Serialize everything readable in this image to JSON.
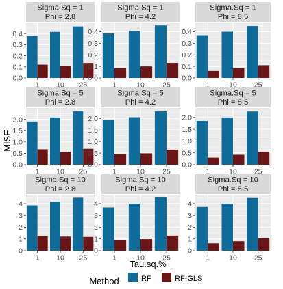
{
  "chart_data": {
    "type": "bar",
    "xlabel": "Tau.sq.%",
    "ylabel": "MISE",
    "categories": [
      "1",
      "10",
      "25"
    ],
    "legend": {
      "title": "Method",
      "position": "bottom",
      "entries": [
        {
          "name": "RF",
          "color": "#0f6b99"
        },
        {
          "name": "RF-GLS",
          "color": "#6b1616"
        }
      ]
    },
    "grid": true,
    "facets": [
      {
        "strip": [
          "Sigma.Sq = 1",
          "Phi = 2.8"
        ],
        "ylim": [
          0,
          0.5
        ],
        "yticks": [
          "0.0",
          "0.1",
          "0.2",
          "0.3",
          "0.4"
        ],
        "yvals": [
          0,
          0.1,
          0.2,
          0.3,
          0.4
        ],
        "series": [
          {
            "name": "RF",
            "values": [
              0.38,
              0.415,
              0.465
            ]
          },
          {
            "name": "RF-GLS",
            "values": [
              0.12,
              0.11,
              0.135
            ]
          }
        ]
      },
      {
        "strip": [
          "Sigma.Sq = 1",
          "Phi = 4.2"
        ],
        "ylim": [
          0,
          0.48
        ],
        "yticks": [
          "0.0",
          "0.1",
          "0.2",
          "0.3",
          "0.4"
        ],
        "yvals": [
          0,
          0.1,
          0.2,
          0.3,
          0.4
        ],
        "series": [
          {
            "name": "RF",
            "values": [
              0.385,
              0.405,
              0.455
            ]
          },
          {
            "name": "RF-GLS",
            "values": [
              0.085,
              0.1,
              0.13
            ]
          }
        ]
      },
      {
        "strip": [
          "Sigma.Sq = 1",
          "Phi = 8.5"
        ],
        "ylim": [
          0,
          0.48
        ],
        "yticks": [
          "0.0",
          "0.1",
          "0.2",
          "0.3",
          "0.4"
        ],
        "yvals": [
          0,
          0.1,
          0.2,
          0.3,
          0.4
        ],
        "series": [
          {
            "name": "RF",
            "values": [
              0.37,
              0.4,
              0.45
            ]
          },
          {
            "name": "RF-GLS",
            "values": [
              0.06,
              0.085,
              0.11
            ]
          }
        ]
      },
      {
        "strip": [
          "Sigma.Sq = 5",
          "Phi = 2.8"
        ],
        "ylim": [
          0,
          2.5
        ],
        "yticks": [
          "0.0",
          "0.5",
          "1.0",
          "1.5",
          "2.0"
        ],
        "yvals": [
          0,
          0.5,
          1,
          1.5,
          2
        ],
        "series": [
          {
            "name": "RF",
            "values": [
              1.9,
              2.08,
              2.35
            ]
          },
          {
            "name": "RF-GLS",
            "values": [
              0.68,
              0.57,
              0.7
            ]
          }
        ]
      },
      {
        "strip": [
          "Sigma.Sq = 5",
          "Phi = 4.2"
        ],
        "ylim": [
          0,
          2.45
        ],
        "yticks": [
          "0.0",
          "0.5",
          "1.0",
          "1.5",
          "2.0"
        ],
        "yvals": [
          0,
          0.5,
          1,
          1.5,
          2
        ],
        "series": [
          {
            "name": "RF",
            "values": [
              1.93,
              2.05,
              2.3
            ]
          },
          {
            "name": "RF-GLS",
            "values": [
              0.47,
              0.49,
              0.65
            ]
          }
        ]
      },
      {
        "strip": [
          "Sigma.Sq = 5",
          "Phi = 8.5"
        ],
        "ylim": [
          0,
          2.4
        ],
        "yticks": [
          "0.0",
          "0.5",
          "1.0",
          "1.5",
          "2.0"
        ],
        "yvals": [
          0,
          0.5,
          1,
          1.5,
          2
        ],
        "series": [
          {
            "name": "RF",
            "values": [
              1.85,
              2.0,
              2.25
            ]
          },
          {
            "name": "RF-GLS",
            "values": [
              0.3,
              0.42,
              0.55
            ]
          }
        ]
      },
      {
        "strip": [
          "Sigma.Sq = 10",
          "Phi = 2.8"
        ],
        "ylim": [
          0,
          4.75
        ],
        "yticks": [
          "0",
          "1",
          "2",
          "3",
          "4"
        ],
        "yvals": [
          0,
          1,
          2,
          3,
          4
        ],
        "series": [
          {
            "name": "RF",
            "values": [
              3.85,
              4.15,
              4.5
            ]
          },
          {
            "name": "RF-GLS",
            "values": [
              1.25,
              1.2,
              1.17
            ]
          }
        ]
      },
      {
        "strip": [
          "Sigma.Sq = 10",
          "Phi = 4.2"
        ],
        "ylim": [
          0,
          4.75
        ],
        "yticks": [
          "0",
          "1",
          "2",
          "3",
          "4"
        ],
        "yvals": [
          0,
          1,
          2,
          3,
          4
        ],
        "series": [
          {
            "name": "RF",
            "values": [
              3.68,
              4.0,
              4.55
            ]
          },
          {
            "name": "RF-GLS",
            "values": [
              0.9,
              0.98,
              1.28
            ]
          }
        ]
      },
      {
        "strip": [
          "Sigma.Sq = 10",
          "Phi = 8.5"
        ],
        "ylim": [
          0,
          4.75
        ],
        "yticks": [
          "0",
          "1",
          "2",
          "3",
          "4"
        ],
        "yvals": [
          0,
          1,
          2,
          3,
          4
        ],
        "series": [
          {
            "name": "RF",
            "values": [
              3.72,
              4.0,
              4.48
            ]
          },
          {
            "name": "RF-GLS",
            "values": [
              0.62,
              0.8,
              1.05
            ]
          }
        ]
      }
    ]
  }
}
